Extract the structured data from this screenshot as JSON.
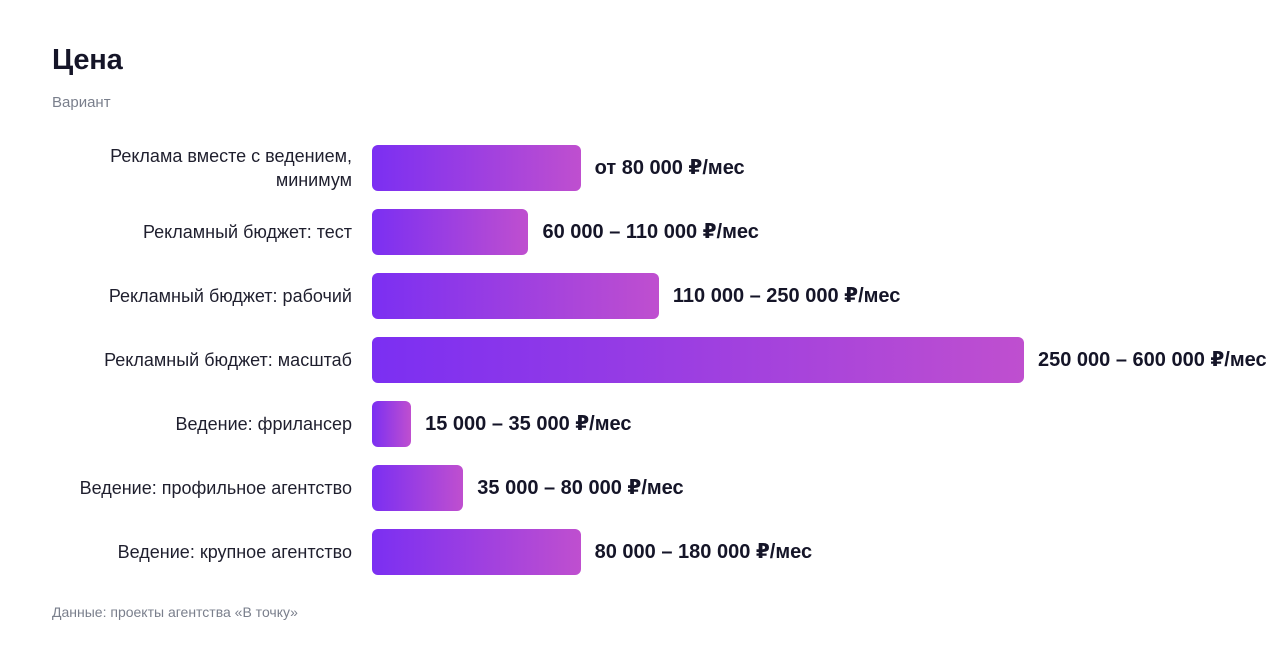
{
  "chart_data": {
    "type": "bar",
    "orientation": "horizontal",
    "title": "Цена",
    "subtitle": "Вариант",
    "source": "Данные: проекты агентства «В точку»",
    "categories": [
      "Реклама вместе с ведением, минимум",
      "Рекламный бюджет: тест",
      "Рекламный бюджет: рабочий",
      "Рекламный бюджет: масштаб",
      "Ведение: фрилансер",
      "Ведение: профильное агентство",
      "Ведение: крупное агентство"
    ],
    "values": [
      80000,
      60000,
      110000,
      250000,
      15000,
      35000,
      80000
    ],
    "value_labels": [
      "от 80 000 ₽/мес",
      "60 000 – 110 000 ₽/мес",
      "110 000 – 250 000 ₽/мес",
      "250 000 – 600 000 ₽/мес",
      "15 000 – 35 000 ₽/мес",
      "35 000 – 80 000 ₽/мес",
      "80 000 – 180 000 ₽/мес"
    ],
    "xlim": [
      0,
      250000
    ],
    "grid": false,
    "legend": "none",
    "colors": {
      "bar_start": "#7b2ff2",
      "bar_end": "#bf4fcf"
    }
  }
}
